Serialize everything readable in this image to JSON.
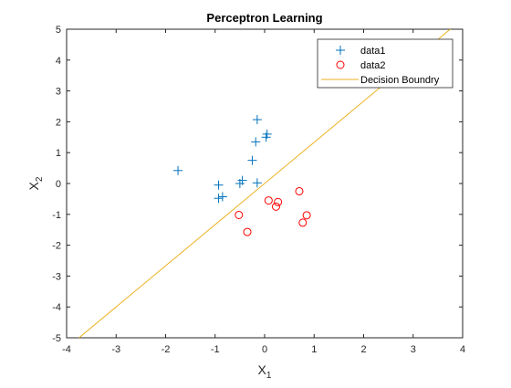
{
  "chart_data": {
    "type": "scatter",
    "title": "Perceptron Learning",
    "xlabel": "X",
    "xlabel_sub": "1",
    "ylabel": "X",
    "ylabel_sub": "2",
    "xlim": [
      -4,
      4
    ],
    "ylim": [
      -5,
      5
    ],
    "xticks": [
      -4,
      -3,
      -2,
      -1,
      0,
      1,
      2,
      3,
      4
    ],
    "yticks": [
      -5,
      -4,
      -3,
      -2,
      -1,
      0,
      1,
      2,
      3,
      4,
      5
    ],
    "grid": false,
    "legend_position": "top-right",
    "series": [
      {
        "name": "data1",
        "marker": "plus",
        "color": "#0072BD",
        "points": [
          [
            -1.75,
            0.42
          ],
          [
            -0.93,
            -0.05
          ],
          [
            -0.93,
            -0.48
          ],
          [
            -0.85,
            -0.43
          ],
          [
            -0.5,
            0.0
          ],
          [
            -0.45,
            0.1
          ],
          [
            -0.25,
            0.75
          ],
          [
            -0.18,
            1.35
          ],
          [
            -0.15,
            2.07
          ],
          [
            -0.15,
            0.02
          ],
          [
            0.03,
            1.5
          ],
          [
            0.05,
            1.6
          ]
        ]
      },
      {
        "name": "data2",
        "marker": "circle",
        "color": "#FF0000",
        "points": [
          [
            -0.52,
            -1.02
          ],
          [
            -0.35,
            -1.57
          ],
          [
            0.08,
            -0.55
          ],
          [
            0.23,
            -0.75
          ],
          [
            0.27,
            -0.6
          ],
          [
            0.7,
            -0.25
          ],
          [
            0.77,
            -1.27
          ],
          [
            0.85,
            -1.03
          ]
        ]
      },
      {
        "name": "Decision Boundry",
        "marker": "line",
        "color": "#EDB120",
        "line": [
          [
            -3.75,
            -5.0
          ],
          [
            3.75,
            5.0
          ]
        ]
      }
    ]
  }
}
